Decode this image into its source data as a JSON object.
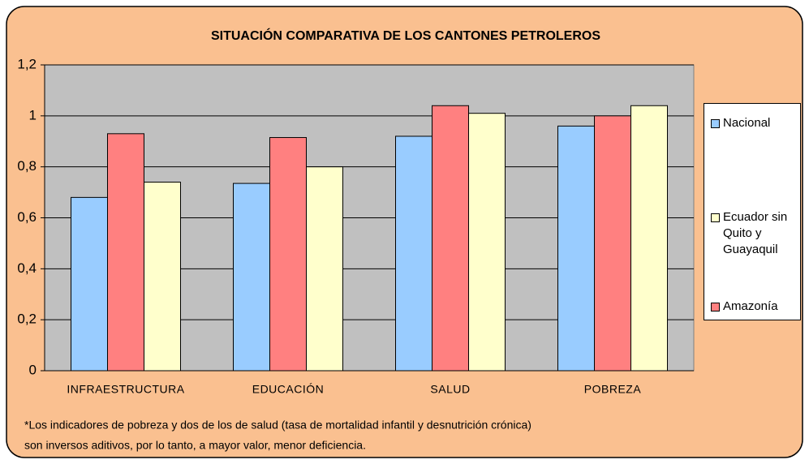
{
  "chart_data": {
    "type": "bar",
    "title": "SITUACIÓN COMPARATIVA DE LOS CANTONES PETROLEROS",
    "categories": [
      "INFRAESTRUCTURA",
      "EDUCACIÓN",
      "SALUD",
      "POBREZA"
    ],
    "series": [
      {
        "name": "Nacional",
        "color": "#99ccff",
        "values": [
          0.68,
          0.735,
          0.92,
          0.96
        ]
      },
      {
        "name": "Amazonía",
        "color": "#ff8080",
        "values": [
          0.93,
          0.915,
          1.04,
          1.0
        ]
      },
      {
        "name": "Ecuador sin Quito y Guayaquil",
        "color": "#ffffcc",
        "values": [
          0.74,
          0.8,
          1.01,
          1.04
        ]
      }
    ],
    "ylim": [
      0,
      1.2
    ],
    "yticks": [
      0,
      {
        "value": 0.2,
        "label": "0,2"
      },
      {
        "value": 0.4,
        "label": "0,4"
      },
      {
        "value": 0.6,
        "label": "0,6"
      },
      {
        "value": 0.8,
        "label": "0,8"
      },
      1,
      {
        "value": 1.2,
        "label": "1,2"
      }
    ],
    "grid": true,
    "notes": [
      "*Los indicadores de pobreza y dos de los de salud (tasa de mortalidad infantil y desnutrición crónica)",
      "son inversos aditivos, por lo tanto, a mayor valor, menor deficiencia."
    ]
  }
}
